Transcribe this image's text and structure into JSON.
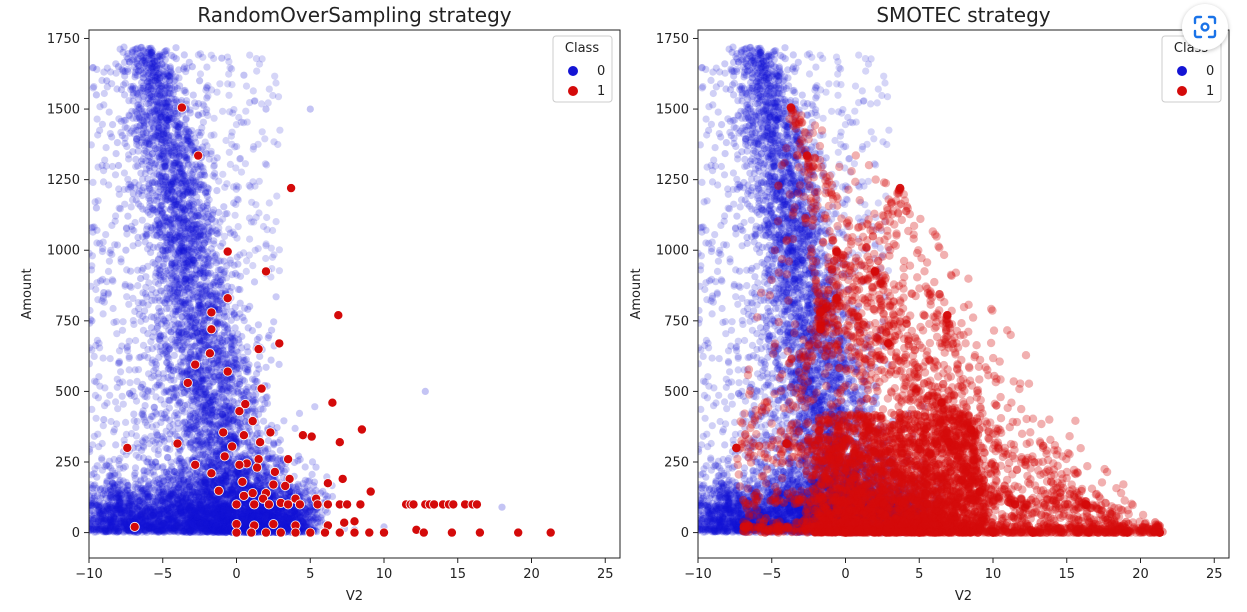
{
  "chart_data": [
    {
      "type": "scatter",
      "title": "RandomOverSampling strategy",
      "xlabel": "V2",
      "ylabel": "Amount",
      "xlim": [
        -10,
        26
      ],
      "ylim": [
        -90,
        1780
      ],
      "xticks": [
        -10,
        -5,
        0,
        5,
        10,
        15,
        20,
        25
      ],
      "yticks": [
        0,
        250,
        500,
        750,
        1000,
        1250,
        1500,
        1750
      ],
      "legend": {
        "title": "Class",
        "position": "top-right",
        "entries": [
          "0",
          "1"
        ]
      },
      "series": [
        {
          "name": "0",
          "color": "#1414d4",
          "alpha": 0.22,
          "description_points": "dense cloud",
          "points": [
            [
              -6,
              1700
            ],
            [
              -5.8,
              1650
            ],
            [
              -5.5,
              1600
            ],
            [
              -5.2,
              1550
            ],
            [
              -5,
              1500
            ],
            [
              -4.8,
              1450
            ],
            [
              -4.6,
              1400
            ],
            [
              -4.4,
              1350
            ],
            [
              -4.2,
              1300
            ],
            [
              -4,
              1250
            ],
            [
              -3.9,
              1200
            ],
            [
              -3.8,
              1150
            ],
            [
              -3.6,
              1100
            ],
            [
              -3.4,
              1050
            ],
            [
              -3.2,
              1000
            ],
            [
              -3,
              950
            ],
            [
              -2.8,
              900
            ],
            [
              -2.6,
              850
            ],
            [
              -2.4,
              800
            ],
            [
              -2.2,
              750
            ],
            [
              -2,
              700
            ],
            [
              -1.8,
              650
            ],
            [
              -1.5,
              600
            ],
            [
              -1.2,
              550
            ],
            [
              -1,
              500
            ],
            [
              -0.8,
              450
            ],
            [
              -0.5,
              400
            ],
            [
              -0.3,
              350
            ],
            [
              0,
              300
            ],
            [
              0.3,
              250
            ],
            [
              0.6,
              200
            ],
            [
              1,
              150
            ],
            [
              1.5,
              100
            ],
            [
              2,
              60
            ],
            [
              3,
              30
            ],
            [
              4,
              15
            ],
            [
              5,
              8
            ],
            [
              -9.5,
              1550
            ],
            [
              -8.8,
              1600
            ],
            [
              -8,
              1650
            ],
            [
              -3,
              1650
            ],
            [
              -2.5,
              1600
            ],
            [
              -1,
              1680
            ],
            [
              0.5,
              1620
            ],
            [
              2,
              1500
            ],
            [
              5,
              1500
            ],
            [
              -9,
              400
            ],
            [
              -8,
              600
            ],
            [
              -7,
              300
            ],
            [
              -9.5,
              100
            ],
            [
              -8.5,
              200
            ],
            [
              -7.5,
              50
            ],
            [
              -6.5,
              150
            ],
            [
              -5.5,
              250
            ],
            [
              -4.5,
              350
            ],
            [
              -3.5,
              450
            ],
            [
              -2.5,
              250
            ],
            [
              -1.5,
              150
            ],
            [
              -0.5,
              80
            ],
            [
              0.5,
              40
            ],
            [
              2.5,
              20
            ],
            [
              6,
              10
            ],
            [
              8,
              10
            ],
            [
              10,
              20
            ],
            [
              12.8,
              500
            ],
            [
              18,
              90
            ],
            [
              -9.8,
              750
            ],
            [
              -9,
              850
            ],
            [
              -7.5,
              1000
            ],
            [
              -7,
              1200
            ],
            [
              -6.5,
              900
            ],
            [
              -8,
              1300
            ],
            [
              -9.5,
              1150
            ]
          ]
        },
        {
          "name": "1",
          "color": "#d40a0a",
          "points": [
            [
              -3.7,
              1505
            ],
            [
              -2.6,
              1335
            ],
            [
              3.7,
              1220
            ],
            [
              -0.6,
              995
            ],
            [
              2,
              925
            ],
            [
              -0.6,
              830
            ],
            [
              -1.7,
              780
            ],
            [
              6.9,
              770
            ],
            [
              -1.7,
              720
            ],
            [
              2.9,
              670
            ],
            [
              1.5,
              650
            ],
            [
              -1.8,
              635
            ],
            [
              -0.6,
              570
            ],
            [
              -2.8,
              595
            ],
            [
              -3.3,
              530
            ],
            [
              1.7,
              510
            ],
            [
              6.5,
              460
            ],
            [
              0.6,
              455
            ],
            [
              0.2,
              430
            ],
            [
              1.1,
              395
            ],
            [
              8.5,
              365
            ],
            [
              -0.9,
              355
            ],
            [
              0.5,
              345
            ],
            [
              4.5,
              345
            ],
            [
              5.1,
              340
            ],
            [
              -4,
              315
            ],
            [
              -0.3,
              305
            ],
            [
              7,
              320
            ],
            [
              1.6,
              320
            ],
            [
              2.3,
              355
            ],
            [
              -7.4,
              300
            ],
            [
              -0.8,
              270
            ],
            [
              -2.8,
              240
            ],
            [
              0.7,
              245
            ],
            [
              1.5,
              260
            ],
            [
              3.5,
              260
            ],
            [
              0.2,
              240
            ],
            [
              -1.7,
              210
            ],
            [
              1.4,
              230
            ],
            [
              2.6,
              215
            ],
            [
              3.6,
              190
            ],
            [
              0.4,
              180
            ],
            [
              6.2,
              175
            ],
            [
              7.2,
              190
            ],
            [
              2.5,
              170
            ],
            [
              3.3,
              165
            ],
            [
              -1.2,
              148
            ],
            [
              1.1,
              140
            ],
            [
              2,
              140
            ],
            [
              9.1,
              145
            ],
            [
              0.5,
              130
            ],
            [
              1.8,
              120
            ],
            [
              3,
              105
            ],
            [
              4,
              120
            ],
            [
              5.4,
              120
            ],
            [
              0,
              100
            ],
            [
              1.2,
              100
            ],
            [
              2.2,
              100
            ],
            [
              3.5,
              100
            ],
            [
              4.3,
              100
            ],
            [
              5.5,
              100
            ],
            [
              6.2,
              100
            ],
            [
              7,
              100
            ],
            [
              7.5,
              100
            ],
            [
              8.4,
              100
            ],
            [
              11.5,
              100
            ],
            [
              11.8,
              100
            ],
            [
              12,
              100
            ],
            [
              12.8,
              100
            ],
            [
              13.1,
              100
            ],
            [
              13.4,
              100
            ],
            [
              14,
              100
            ],
            [
              14.4,
              100
            ],
            [
              14.7,
              100
            ],
            [
              15.5,
              100
            ],
            [
              16,
              100
            ],
            [
              16.3,
              100
            ],
            [
              -6.9,
              20
            ],
            [
              0,
              30
            ],
            [
              1.2,
              25
            ],
            [
              2.5,
              30
            ],
            [
              4,
              25
            ],
            [
              6.2,
              25
            ],
            [
              7.3,
              35
            ],
            [
              8,
              40
            ],
            [
              12.2,
              10
            ],
            [
              0,
              0
            ],
            [
              1,
              0
            ],
            [
              2,
              0
            ],
            [
              3,
              0
            ],
            [
              4,
              0
            ],
            [
              5,
              0
            ],
            [
              6,
              0
            ],
            [
              7,
              0
            ],
            [
              8,
              0
            ],
            [
              9,
              0
            ],
            [
              10,
              0
            ],
            [
              12.7,
              0
            ],
            [
              14.6,
              0
            ],
            [
              16.5,
              0
            ],
            [
              19.1,
              0
            ],
            [
              21.3,
              0
            ]
          ]
        }
      ]
    },
    {
      "type": "scatter",
      "title": "SMOTEC strategy",
      "xlabel": "V2",
      "ylabel": "Amount",
      "xlim": [
        -10,
        26
      ],
      "ylim": [
        -90,
        1780
      ],
      "xticks": [
        -10,
        -5,
        0,
        5,
        10,
        15,
        20,
        25
      ],
      "yticks": [
        0,
        250,
        500,
        750,
        1000,
        1250,
        1500,
        1750
      ],
      "legend": {
        "title": "Class",
        "position": "top-right",
        "entries": [
          "0",
          "1"
        ]
      },
      "series": [
        {
          "name": "0",
          "color": "#1414d4",
          "alpha": 0.22
        },
        {
          "name": "1",
          "color": "#d40a0a",
          "alpha": 0.35,
          "anchors": [
            [
              -3.7,
              1505
            ],
            [
              -2.6,
              1335
            ],
            [
              3.7,
              1220
            ],
            [
              -0.6,
              995
            ],
            [
              2,
              925
            ],
            [
              -0.6,
              830
            ],
            [
              -1.7,
              780
            ],
            [
              6.9,
              770
            ],
            [
              -1.7,
              720
            ],
            [
              2.9,
              670
            ],
            [
              6.5,
              460
            ],
            [
              8.5,
              365
            ],
            [
              -7.4,
              300
            ],
            [
              -4,
              315
            ],
            [
              7,
              320
            ],
            [
              9.1,
              145
            ],
            [
              11.5,
              100
            ],
            [
              16.3,
              100
            ],
            [
              -6.9,
              20
            ],
            [
              12.7,
              0
            ],
            [
              16.5,
              0
            ],
            [
              19.1,
              0
            ],
            [
              21.3,
              0
            ],
            [
              0,
              0
            ],
            [
              5,
              0
            ],
            [
              10,
              0
            ]
          ]
        }
      ]
    }
  ],
  "ui": {
    "lens_button_icon": "google-lens-icon"
  }
}
